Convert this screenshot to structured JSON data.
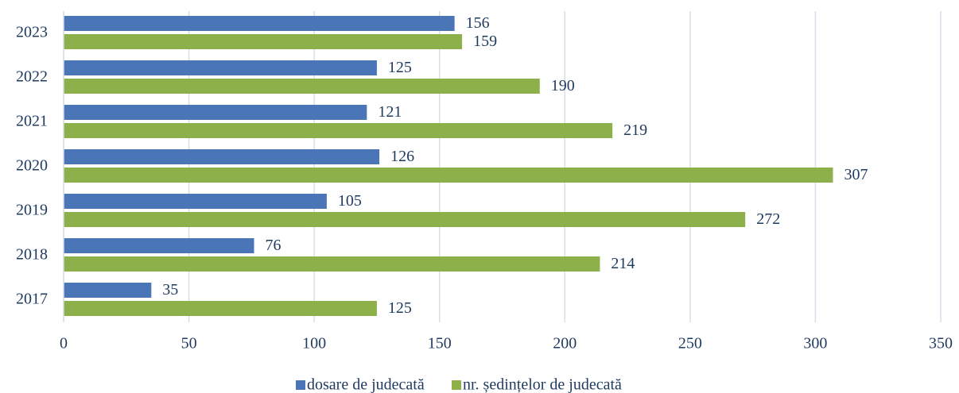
{
  "chart_data": {
    "type": "hbar",
    "categories": [
      "2017",
      "2018",
      "2019",
      "2020",
      "2021",
      "2022",
      "2023"
    ],
    "series": [
      {
        "name": "dosare de judecată",
        "color": "#4a76b8",
        "values": [
          35,
          76,
          105,
          126,
          121,
          125,
          156
        ]
      },
      {
        "name": "nr. ședințelor de judecată",
        "color": "#8db04a",
        "values": [
          125,
          214,
          272,
          307,
          219,
          190,
          159
        ]
      }
    ],
    "xlim": [
      0,
      350
    ],
    "xticks": [
      0,
      50,
      100,
      150,
      200,
      250,
      300,
      350
    ],
    "grid": true,
    "legend": "bottom"
  }
}
